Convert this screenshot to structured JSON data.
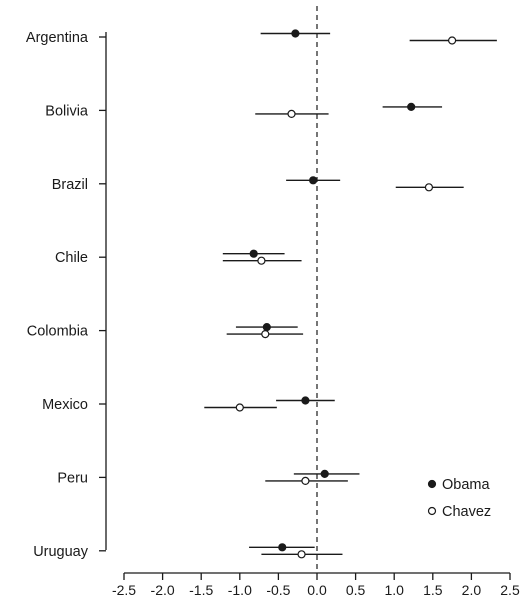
{
  "chart_data": {
    "type": "scatter",
    "subtype": "dot-and-whisker",
    "orientation": "horizontal",
    "categories": [
      "Argentina",
      "Bolivia",
      "Brazil",
      "Chile",
      "Colombia",
      "Mexico",
      "Peru",
      "Uruguay"
    ],
    "series": [
      {
        "name": "Obama",
        "marker": "filled-circle",
        "color": "#1a1a1a",
        "estimates": [
          -0.28,
          1.22,
          -0.05,
          -0.82,
          -0.65,
          -0.15,
          0.1,
          -0.45
        ],
        "lower": [
          -0.73,
          0.85,
          -0.4,
          -1.22,
          -1.05,
          -0.53,
          -0.3,
          -0.88
        ],
        "upper": [
          0.17,
          1.62,
          0.3,
          -0.42,
          -0.25,
          0.23,
          0.55,
          -0.03
        ]
      },
      {
        "name": "Chavez",
        "marker": "open-circle",
        "color": "#1a1a1a",
        "estimates": [
          1.75,
          -0.33,
          1.45,
          -0.72,
          -0.67,
          -1.0,
          -0.15,
          -0.2
        ],
        "lower": [
          1.2,
          -0.8,
          1.02,
          -1.22,
          -1.17,
          -1.46,
          -0.67,
          -0.72
        ],
        "upper": [
          2.33,
          0.15,
          1.9,
          -0.2,
          -0.18,
          -0.52,
          0.4,
          0.33
        ]
      }
    ],
    "x_ticks": [
      "-2.5",
      "-2.0",
      "-1.5",
      "-1.0",
      "-0.5",
      "0.0",
      "0.5",
      "1.0",
      "1.5",
      "2.0",
      "2.5"
    ],
    "xlim": [
      -2.5,
      2.5
    ],
    "reference_line": 0,
    "reference_line_style": "dashed",
    "grid": false,
    "legend_position": "bottom-right",
    "title": "",
    "xlabel": "",
    "ylabel": ""
  }
}
